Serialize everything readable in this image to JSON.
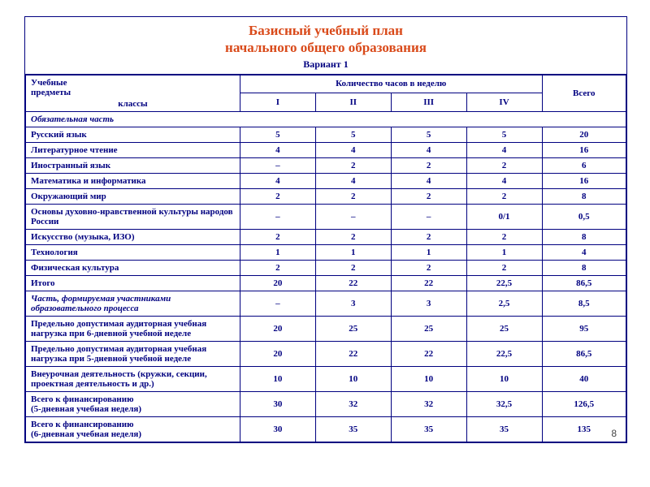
{
  "title": {
    "line1": "Базисный учебный  план",
    "line2": "начального общего образования",
    "variant": "Вариант  1"
  },
  "header": {
    "subjects_l1": "Учебные",
    "subjects_l2": "предметы",
    "classes_label": "классы",
    "hours_label": "Количество часов в неделю",
    "total_label": "Всего",
    "cols": [
      "I",
      "II",
      "III",
      "IV"
    ]
  },
  "rows": [
    {
      "type": "section",
      "label": "Обязательная часть"
    },
    {
      "type": "data",
      "label": "Русский язык",
      "v": [
        "5",
        "5",
        "5",
        "5",
        "20"
      ]
    },
    {
      "type": "data",
      "label": "Литературное чтение",
      "v": [
        "4",
        "4",
        "4",
        "4",
        "16"
      ]
    },
    {
      "type": "data",
      "label": "Иностранный язык",
      "v": [
        "–",
        "2",
        "2",
        "2",
        "6"
      ]
    },
    {
      "type": "data",
      "label": "Математика и информатика",
      "v": [
        "4",
        "4",
        "4",
        "4",
        "16"
      ]
    },
    {
      "type": "data",
      "label": "Окружающий мир",
      "v": [
        "2",
        "2",
        "2",
        "2",
        "8"
      ]
    },
    {
      "type": "data",
      "label": "Основы духовно-нравственной культуры народов России",
      "v": [
        "–",
        "–",
        "–",
        "0/1",
        "0,5"
      ]
    },
    {
      "type": "data",
      "label": "Искусство (музыка, ИЗО)",
      "v": [
        "2",
        "2",
        "2",
        "2",
        "8"
      ]
    },
    {
      "type": "data",
      "label": "Технология",
      "v": [
        "1",
        "1",
        "1",
        "1",
        "4"
      ]
    },
    {
      "type": "data",
      "label": "Физическая культура",
      "v": [
        "2",
        "2",
        "2",
        "2",
        "8"
      ]
    },
    {
      "type": "data",
      "label": "Итого",
      "v": [
        "20",
        "22",
        "22",
        "22,5",
        "86,5"
      ]
    },
    {
      "type": "italic",
      "label": "Часть, формируемая участниками образовательного процесса",
      "v": [
        "–",
        "3",
        "3",
        "2,5",
        "8,5"
      ]
    },
    {
      "type": "data",
      "label": "Предельно допустимая аудиторная учебная нагрузка при 6-дневной учебной неделе",
      "v": [
        "20",
        "25",
        "25",
        "25",
        "95"
      ]
    },
    {
      "type": "data",
      "label": "Предельно допустимая аудиторная учебная нагрузка при 5-дневной учебной неделе",
      "v": [
        "20",
        "22",
        "22",
        "22,5",
        "86,5"
      ]
    },
    {
      "type": "data",
      "label": "Внеурочная деятельность (кружки, секции, проектная деятельность и др.)",
      "v": [
        "10",
        "10",
        "10",
        "10",
        "40"
      ]
    },
    {
      "type": "data",
      "label": "Всего к финансированию\n (5-дневная учебная неделя)",
      "v": [
        "30",
        "32",
        "32",
        "32,5",
        "126,5"
      ]
    },
    {
      "type": "data",
      "label": "Всего к финансированию\n (6-дневная учебная неделя)",
      "v": [
        "30",
        "35",
        "35",
        "35",
        "135"
      ]
    }
  ],
  "page_number": "8",
  "style": {
    "border_color": "#000080",
    "text_color": "#000080",
    "title_color": "#d94a1a",
    "font_family": "Times New Roman",
    "title_fontsize_pt": 13,
    "body_fontsize_pt": 8.5
  }
}
